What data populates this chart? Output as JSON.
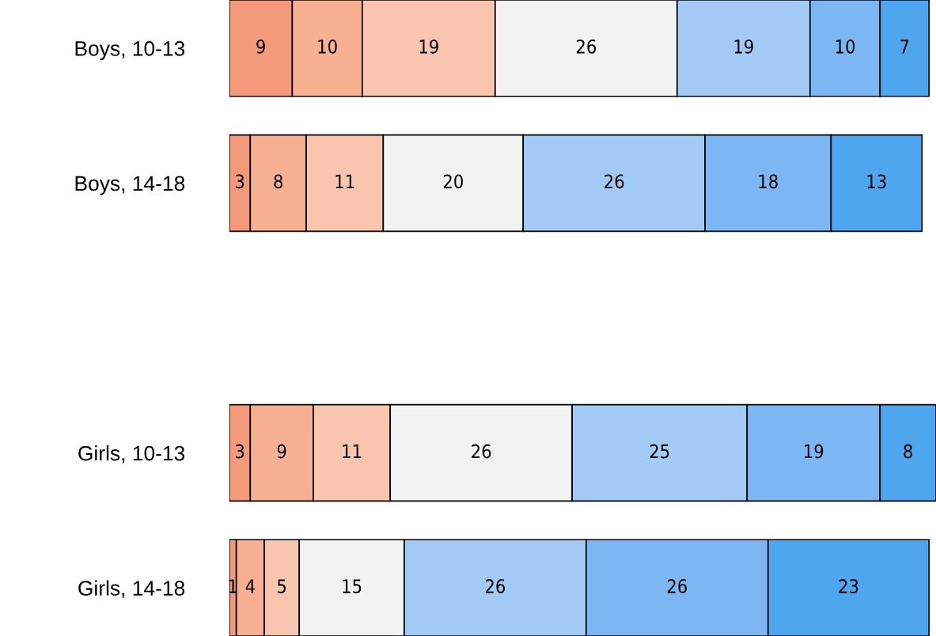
{
  "chart_data": {
    "type": "bar",
    "orientation": "horizontal",
    "stacked": true,
    "data_labels": true,
    "tick_labels": "y",
    "grid": false,
    "categories": [
      "Boys, 10-13",
      "Boys, 14-18",
      null,
      "Girls, 10-13",
      "Girls, 14-18"
    ],
    "series": [
      {
        "color": "#f4997a",
        "values": [
          9,
          3,
          null,
          3,
          1
        ]
      },
      {
        "color": "#f8b093",
        "values": [
          10,
          8,
          null,
          9,
          4
        ]
      },
      {
        "color": "#fac5ae",
        "values": [
          19,
          11,
          null,
          11,
          5
        ]
      },
      {
        "color": "#f2f2f2",
        "values": [
          26,
          20,
          null,
          26,
          15
        ]
      },
      {
        "color": "#a3c9f5",
        "values": [
          19,
          26,
          null,
          25,
          26
        ]
      },
      {
        "color": "#7db7f3",
        "values": [
          10,
          18,
          null,
          19,
          26
        ]
      },
      {
        "color": "#4da6ee",
        "values": [
          7,
          13,
          null,
          8,
          23
        ]
      }
    ]
  }
}
